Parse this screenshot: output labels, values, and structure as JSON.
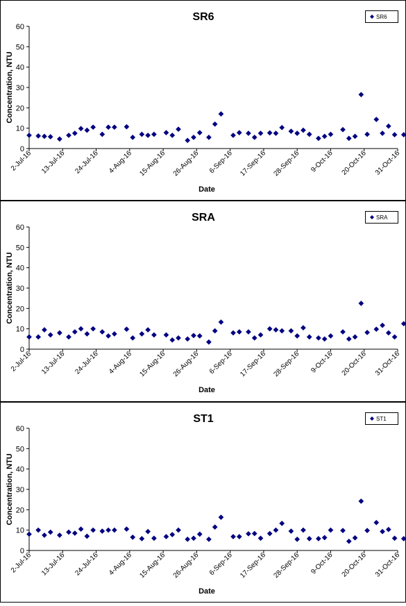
{
  "chart_data": [
    {
      "type": "scatter",
      "title": "SR6",
      "xlabel": "Date",
      "ylabel": "Concentration, NTU",
      "ylim": [
        0,
        60
      ],
      "yticks": [
        0,
        10,
        20,
        30,
        40,
        50,
        60
      ],
      "xlim": [
        "2016-07-02",
        "2016-10-31"
      ],
      "xtick_labels": [
        "2-Jul-16",
        "13-Jul-16",
        "24-Jul-16",
        "4-Aug-16",
        "15-Aug-16",
        "26-Aug-16",
        "6-Sep-16",
        "17-Sep-16",
        "28-Sep-16",
        "9-Oct-16",
        "20-Oct-16",
        "31-Oct-16"
      ],
      "grid": false,
      "legend": "top-right",
      "marker_color": "#000080",
      "series": [
        {
          "name": "SR6",
          "x": [
            "2016-07-02",
            "2016-07-05",
            "2016-07-07",
            "2016-07-09",
            "2016-07-12",
            "2016-07-15",
            "2016-07-17",
            "2016-07-19",
            "2016-07-21",
            "2016-07-23",
            "2016-07-26",
            "2016-07-28",
            "2016-07-30",
            "2016-08-03",
            "2016-08-05",
            "2016-08-08",
            "2016-08-10",
            "2016-08-12",
            "2016-08-16",
            "2016-08-18",
            "2016-08-20",
            "2016-08-23",
            "2016-08-25",
            "2016-08-27",
            "2016-08-30",
            "2016-09-01",
            "2016-09-03",
            "2016-09-07",
            "2016-09-09",
            "2016-09-12",
            "2016-09-14",
            "2016-09-16",
            "2016-09-19",
            "2016-09-21",
            "2016-09-23",
            "2016-09-26",
            "2016-09-28",
            "2016-09-30",
            "2016-10-02",
            "2016-10-05",
            "2016-10-07",
            "2016-10-09",
            "2016-10-13",
            "2016-10-15",
            "2016-10-17",
            "2016-10-19",
            "2016-10-21",
            "2016-10-24",
            "2016-10-26",
            "2016-10-28",
            "2016-10-30",
            "2016-11-02"
          ],
          "y": [
            6.5,
            6.2,
            6,
            5.8,
            4.7,
            6.5,
            7.5,
            9.8,
            9,
            10.5,
            7,
            10.5,
            10.5,
            10.7,
            5.5,
            7,
            6.5,
            7,
            7.8,
            6.5,
            9.5,
            4,
            5.5,
            7.8,
            5.5,
            12,
            17,
            6.5,
            7.8,
            7.5,
            5.5,
            7.5,
            7.7,
            7.5,
            10.3,
            8.5,
            7.5,
            9,
            7,
            5,
            6,
            7,
            9.3,
            5,
            6,
            26.5,
            7,
            14.3,
            7.5,
            11,
            6.8,
            6.8
          ]
        }
      ]
    },
    {
      "type": "scatter",
      "title": "SRA",
      "xlabel": "Date",
      "ylabel": "Concentration, NTU",
      "ylim": [
        0,
        60
      ],
      "yticks": [
        0,
        10,
        20,
        30,
        40,
        50,
        60
      ],
      "xlim": [
        "2016-07-02",
        "2016-10-31"
      ],
      "xtick_labels": [
        "2-Jul-16",
        "13-Jul-16",
        "24-Jul-16",
        "4-Aug-16",
        "15-Aug-16",
        "26-Aug-16",
        "6-Sep-16",
        "17-Sep-16",
        "28-Sep-16",
        "9-Oct-16",
        "20-Oct-16",
        "31-Oct-16"
      ],
      "grid": false,
      "legend": "top-right",
      "marker_color": "#000080",
      "series": [
        {
          "name": "SRA",
          "x": [
            "2016-07-02",
            "2016-07-05",
            "2016-07-07",
            "2016-07-09",
            "2016-07-12",
            "2016-07-15",
            "2016-07-17",
            "2016-07-19",
            "2016-07-21",
            "2016-07-23",
            "2016-07-26",
            "2016-07-28",
            "2016-07-30",
            "2016-08-03",
            "2016-08-05",
            "2016-08-08",
            "2016-08-10",
            "2016-08-12",
            "2016-08-16",
            "2016-08-18",
            "2016-08-20",
            "2016-08-23",
            "2016-08-25",
            "2016-08-27",
            "2016-08-30",
            "2016-09-01",
            "2016-09-03",
            "2016-09-07",
            "2016-09-09",
            "2016-09-12",
            "2016-09-14",
            "2016-09-16",
            "2016-09-19",
            "2016-09-21",
            "2016-09-23",
            "2016-09-26",
            "2016-09-28",
            "2016-09-30",
            "2016-10-02",
            "2016-10-05",
            "2016-10-07",
            "2016-10-09",
            "2016-10-13",
            "2016-10-15",
            "2016-10-17",
            "2016-10-19",
            "2016-10-21",
            "2016-10-24",
            "2016-10-26",
            "2016-10-28",
            "2016-10-30",
            "2016-11-02"
          ],
          "y": [
            6,
            6,
            9.5,
            7,
            8,
            6,
            8.5,
            10,
            7.5,
            10,
            8.5,
            6.5,
            7.5,
            9.8,
            5.5,
            7.5,
            9.5,
            7,
            7,
            4.5,
            5.5,
            5,
            6.7,
            6.5,
            3.5,
            9,
            13.3,
            8,
            8.5,
            8.5,
            5.5,
            7,
            10,
            9.5,
            9,
            9,
            6.5,
            10.5,
            6,
            5.5,
            5,
            6.5,
            8.5,
            5,
            6,
            22.5,
            8.2,
            9.8,
            11.7,
            8,
            6,
            12.5
          ]
        }
      ]
    },
    {
      "type": "scatter",
      "title": "ST1",
      "xlabel": "Date",
      "ylabel": "Concentration, NTU",
      "ylim": [
        0,
        60
      ],
      "yticks": [
        0,
        10,
        20,
        30,
        40,
        50,
        60
      ],
      "xlim": [
        "2016-07-02",
        "2016-10-31"
      ],
      "xtick_labels": [
        "2-Jul-16",
        "13-Jul-16",
        "24-Jul-16",
        "4-Aug-16",
        "15-Aug-16",
        "26-Aug-16",
        "6-Sep-16",
        "17-Sep-16",
        "28-Sep-16",
        "9-Oct-16",
        "20-Oct-16",
        "31-Oct-16"
      ],
      "grid": false,
      "legend": "top-right",
      "marker_color": "#000080",
      "series": [
        {
          "name": "ST1",
          "x": [
            "2016-07-02",
            "2016-07-05",
            "2016-07-07",
            "2016-07-09",
            "2016-07-12",
            "2016-07-15",
            "2016-07-17",
            "2016-07-19",
            "2016-07-21",
            "2016-07-23",
            "2016-07-26",
            "2016-07-28",
            "2016-07-30",
            "2016-08-03",
            "2016-08-05",
            "2016-08-08",
            "2016-08-10",
            "2016-08-12",
            "2016-08-16",
            "2016-08-18",
            "2016-08-20",
            "2016-08-23",
            "2016-08-25",
            "2016-08-27",
            "2016-08-30",
            "2016-09-01",
            "2016-09-03",
            "2016-09-07",
            "2016-09-09",
            "2016-09-12",
            "2016-09-14",
            "2016-09-16",
            "2016-09-19",
            "2016-09-21",
            "2016-09-23",
            "2016-09-26",
            "2016-09-28",
            "2016-09-30",
            "2016-10-02",
            "2016-10-05",
            "2016-10-07",
            "2016-10-09",
            "2016-10-13",
            "2016-10-15",
            "2016-10-17",
            "2016-10-19",
            "2016-10-21",
            "2016-10-24",
            "2016-10-26",
            "2016-10-28",
            "2016-10-30",
            "2016-11-02"
          ],
          "y": [
            8,
            10,
            7.5,
            9,
            7.5,
            9,
            8.5,
            10.5,
            7,
            10,
            9.5,
            10,
            10,
            10.5,
            6.5,
            5.8,
            9.3,
            6,
            6.8,
            7.8,
            10,
            5.5,
            6,
            8,
            5.5,
            11.5,
            16.3,
            6.8,
            6.8,
            8.2,
            8.3,
            6,
            8.3,
            10,
            13.3,
            9.5,
            5.5,
            10,
            5.8,
            5.8,
            6.3,
            10,
            9.8,
            4.5,
            6.2,
            24.2,
            9.8,
            13.7,
            9.3,
            10.3,
            6,
            5.8
          ]
        }
      ]
    }
  ]
}
